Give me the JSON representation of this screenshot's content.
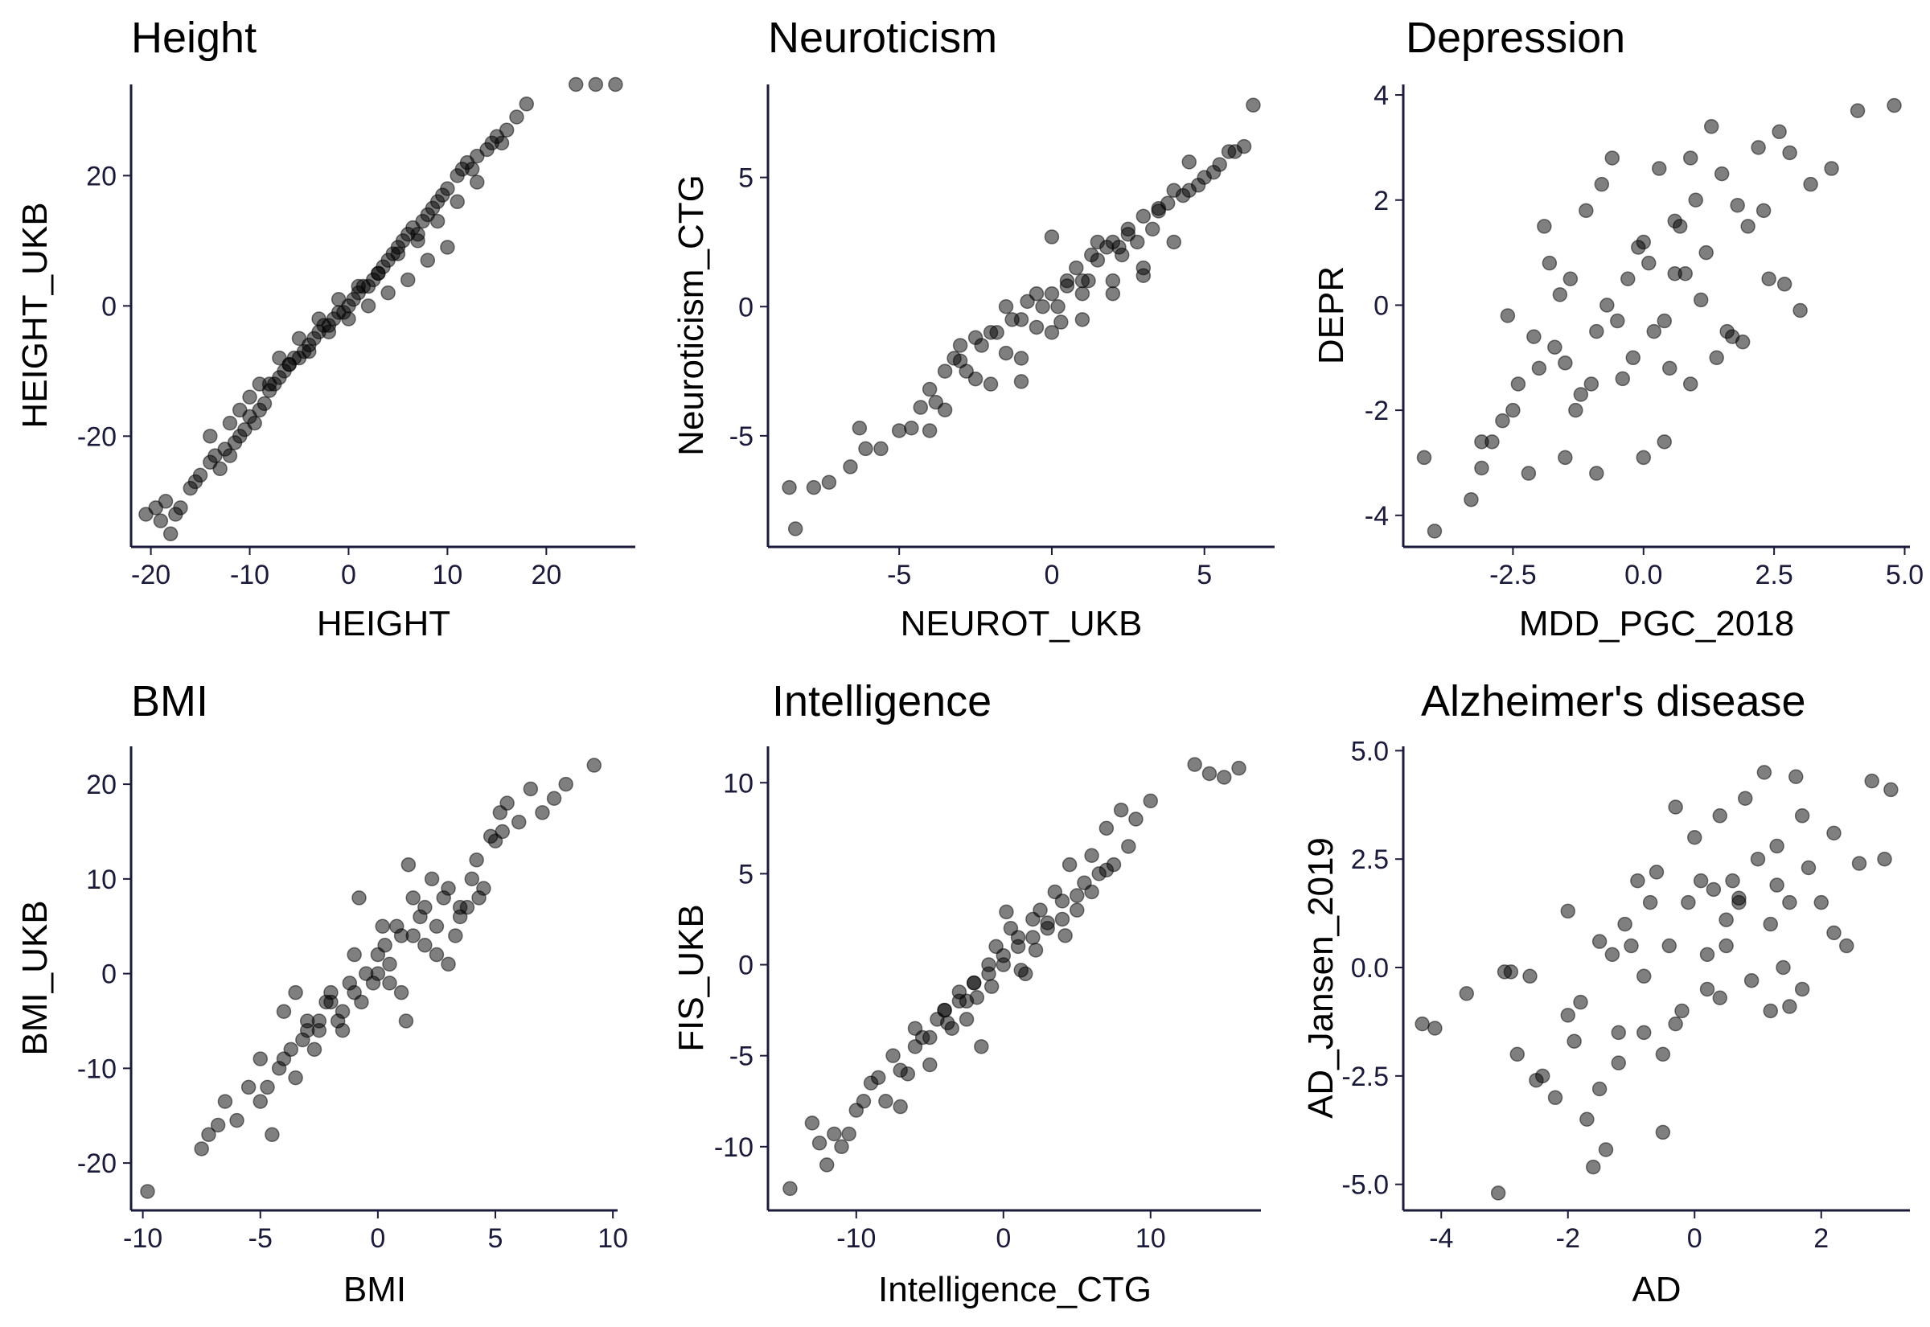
{
  "chart_data": [
    {
      "type": "scatter",
      "title": "Height",
      "xlabel": "HEIGHT",
      "ylabel": "HEIGHT_UKB",
      "xlim": [
        -22,
        29
      ],
      "ylim": [
        -37,
        34
      ],
      "xticks": [
        -20,
        -10,
        0,
        10,
        20
      ],
      "xtick_labels": [
        "-20",
        "-10",
        "0",
        "10",
        "20"
      ],
      "yticks": [
        -20,
        0,
        20
      ],
      "ytick_labels": [
        "-20",
        "0",
        "20"
      ],
      "points": {
        "x": [
          -20.5,
          -19.5,
          -19,
          -18.5,
          -18,
          -17.5,
          -17,
          -16,
          -15.5,
          -15,
          -14,
          -13.5,
          -13,
          -12.5,
          -12,
          -11.5,
          -11,
          -10.5,
          -10,
          -9.5,
          -9,
          -8.5,
          -8,
          -7.5,
          -7,
          -6.5,
          -6,
          -5.5,
          -5,
          -4.5,
          -4,
          -3.5,
          -3,
          -2.5,
          -2,
          -1.5,
          -1,
          -0.5,
          0,
          0.5,
          1,
          1.5,
          2,
          2.5,
          3,
          3.5,
          4,
          4.5,
          5,
          5.5,
          6,
          6.5,
          7,
          7.5,
          8,
          8.5,
          9,
          9.5,
          10,
          11,
          11.5,
          12,
          12.5,
          13,
          14,
          14.5,
          15,
          15.5,
          16,
          17,
          18,
          23,
          25,
          27,
          -14,
          -12,
          -10,
          -8,
          -6,
          -4,
          -2,
          0,
          2,
          4,
          6,
          8,
          10,
          3,
          5,
          1,
          -1,
          -3,
          -5,
          -7,
          -9,
          -11,
          7,
          9,
          11,
          13
        ],
        "y": [
          -32,
          -31,
          -33,
          -30,
          -35,
          -32,
          -31,
          -28,
          -27,
          -26,
          -24,
          -23,
          -25,
          -22,
          -23,
          -21,
          -20,
          -19,
          -17,
          -18,
          -16,
          -15,
          -13,
          -12,
          -11,
          -10,
          -9,
          -8,
          -8,
          -7,
          -6,
          -5,
          -4,
          -3,
          -3,
          -2,
          -1,
          -1,
          0,
          1,
          2,
          3,
          3,
          4,
          5,
          6,
          7,
          8,
          9,
          10,
          11,
          12,
          11,
          13,
          14,
          15,
          16,
          17,
          18,
          20,
          21,
          22,
          21,
          23,
          24,
          25,
          26,
          25,
          27,
          29,
          31,
          34,
          34,
          34,
          -20,
          -18,
          -14,
          -12,
          -9,
          -7,
          -4,
          -2,
          0,
          2,
          4,
          7,
          9,
          5,
          8,
          3,
          1,
          -2,
          -5,
          -8,
          -12,
          -16,
          10,
          13,
          16,
          19
        ]
      }
    },
    {
      "type": "scatter",
      "title": "Neuroticism",
      "xlabel": "NEUROT_UKB",
      "ylabel": "Neuroticism_CTG",
      "xlim": [
        -9.3,
        7.3
      ],
      "ylim": [
        -9.3,
        8.6
      ],
      "xticks": [
        -5,
        0,
        5
      ],
      "xtick_labels": [
        "-5",
        "0",
        "5"
      ],
      "yticks": [
        -5,
        0,
        5
      ],
      "ytick_labels": [
        "-5",
        "0",
        "5"
      ],
      "points": {
        "x": [
          -8.6,
          -8.4,
          -7.8,
          -7.3,
          -6.6,
          -6.3,
          -6.1,
          -5.6,
          -5,
          -4.6,
          -4.3,
          -4,
          -3.8,
          -3.5,
          -3.2,
          -3,
          -2.8,
          -2.5,
          -2.3,
          -2,
          -1.8,
          -1.5,
          -1.3,
          -1,
          -0.8,
          -0.5,
          -0.3,
          0,
          0.2,
          0.5,
          0.8,
          1,
          1.3,
          1.5,
          1.8,
          2,
          2.3,
          2.5,
          2.8,
          3,
          3.3,
          3.5,
          3.8,
          4,
          4.3,
          4.5,
          4.8,
          5,
          5.3,
          5.5,
          5.8,
          6,
          6.3,
          6.6,
          -2,
          -1,
          0,
          1,
          2,
          3,
          -3,
          -2.5,
          -1.5,
          -0.5,
          0.5,
          1.5,
          2.5,
          3.5,
          4.5,
          -4,
          -3.5,
          1,
          2,
          3,
          4,
          0,
          -1,
          0.3,
          1.2,
          2.2
        ],
        "y": [
          -7,
          -8.6,
          -7,
          -6.8,
          -6.2,
          -4.7,
          -5.5,
          -5.5,
          -4.8,
          -4.7,
          -3.9,
          -3.2,
          -3.7,
          -2.5,
          -2,
          -2.1,
          -2.5,
          -1.2,
          -1.5,
          -1,
          -1,
          0,
          -0.5,
          -0.5,
          0.2,
          0.5,
          0,
          0.5,
          0,
          1,
          1.5,
          1,
          2,
          2.5,
          2.3,
          2.5,
          2,
          3,
          2.5,
          3.5,
          3,
          3.7,
          4,
          4.5,
          4.3,
          4.5,
          4.7,
          5,
          5.2,
          5.5,
          6,
          6,
          6.2,
          7.8,
          -3,
          -2,
          -1,
          0.5,
          1,
          1.5,
          -1.5,
          -2.8,
          -1.8,
          -0.8,
          0.8,
          1.8,
          2.8,
          3.8,
          5.6,
          -4.8,
          -4,
          -0.5,
          0.5,
          1.2,
          2.5,
          2.7,
          -2.9,
          -0.6,
          1,
          2.3
        ]
      }
    },
    {
      "type": "scatter",
      "title": "Depression",
      "xlabel": "MDD_PGC_2018",
      "ylabel": "DEPR",
      "xlim": [
        -4.6,
        5.1
      ],
      "ylim": [
        -4.6,
        4.2
      ],
      "xticks": [
        -2.5,
        0,
        2.5,
        5
      ],
      "xtick_labels": [
        "-2.5",
        "0.0",
        "2.5",
        "5.0"
      ],
      "yticks": [
        -4,
        -2,
        0,
        2,
        4
      ],
      "ytick_labels": [
        "-4",
        "-2",
        "0",
        "2",
        "4"
      ],
      "points": {
        "x": [
          -4.2,
          -4,
          -3.3,
          -3.1,
          -2.9,
          -2.7,
          -2.5,
          -2.4,
          -2.2,
          -2,
          -1.9,
          -1.7,
          -1.5,
          -1.4,
          -1.2,
          -1.1,
          -0.9,
          -0.8,
          -0.6,
          -0.5,
          -0.3,
          -0.2,
          0,
          0.1,
          0.3,
          0.4,
          0.6,
          0.7,
          0.9,
          1,
          1.2,
          1.3,
          1.5,
          1.6,
          1.8,
          2,
          2.2,
          2.4,
          2.6,
          2.8,
          3,
          3.2,
          3.6,
          4.1,
          4.8,
          -1.3,
          -1,
          -0.4,
          0.2,
          0.8,
          1.4,
          -2.6,
          -1.8,
          -0.7,
          0.5,
          1.1,
          1.9,
          -1.6,
          0,
          0.6,
          -0.1,
          0.4,
          1.7,
          2.3,
          -0.9,
          -2.1,
          -3.1,
          -1.5,
          0.9,
          2.7
        ],
        "y": [
          -2.9,
          -4.3,
          -3.7,
          -3.1,
          -2.6,
          -2.2,
          -2,
          -1.5,
          -3.2,
          -1.2,
          1.5,
          -0.8,
          -2.9,
          0.5,
          -1.7,
          1.8,
          -0.5,
          2.3,
          2.8,
          -0.3,
          0.5,
          -1,
          1.2,
          0.8,
          2.6,
          -2.6,
          0.6,
          1.5,
          2.8,
          2,
          1,
          3.4,
          2.5,
          -0.5,
          1.9,
          1.5,
          3,
          0.5,
          3.3,
          2.9,
          -0.1,
          2.3,
          2.6,
          3.7,
          3.8,
          -2,
          -1.5,
          -1.4,
          -0.5,
          0.6,
          -1,
          -0.2,
          0.8,
          0,
          -1.2,
          0.1,
          -0.7,
          0.2,
          -2.9,
          1.6,
          1.1,
          -0.3,
          -0.6,
          1.8,
          -3.2,
          -0.6,
          -2.6,
          -1.1,
          -1.5,
          0.4
        ]
      }
    },
    {
      "type": "scatter",
      "title": "BMI",
      "xlabel": "BMI",
      "ylabel": "BMI_UKB",
      "xlim": [
        -10.5,
        10.2
      ],
      "ylim": [
        -25,
        24
      ],
      "xticks": [
        -10,
        -5,
        0,
        5,
        10
      ],
      "xtick_labels": [
        "-10",
        "-5",
        "0",
        "5",
        "10"
      ],
      "yticks": [
        -20,
        -10,
        0,
        10,
        20
      ],
      "ytick_labels": [
        "-20",
        "-10",
        "0",
        "10",
        "20"
      ],
      "points": {
        "x": [
          -9.8,
          -7.5,
          -7.2,
          -6.8,
          -6.5,
          -6,
          -5.5,
          -5,
          -4.7,
          -4.5,
          -4.2,
          -4,
          -3.7,
          -3.5,
          -3.2,
          -3,
          -2.7,
          -2.5,
          -2.2,
          -2,
          -1.7,
          -1.5,
          -1.2,
          -1,
          -0.7,
          -0.5,
          -0.2,
          0,
          0.3,
          0.5,
          0.8,
          1,
          1.3,
          1.5,
          1.8,
          2,
          2.3,
          2.5,
          2.8,
          3,
          3.3,
          3.5,
          3.8,
          4,
          4.3,
          4.5,
          4.8,
          5,
          5.3,
          5.5,
          6,
          6.5,
          7,
          7.5,
          8,
          9.2,
          -4,
          -3,
          -2,
          -1,
          0,
          1,
          2,
          3,
          -5,
          -2.5,
          0.5,
          1.5,
          2.5,
          3.5,
          -3.5,
          -1.5,
          0.2,
          -0.8,
          1.2,
          4.2,
          5.2
        ],
        "y": [
          -23,
          -18.5,
          -17,
          -16,
          -13.5,
          -15.5,
          -12,
          -13.5,
          -12,
          -17,
          -10,
          -9,
          -8,
          -11,
          -7,
          -5,
          -8,
          -6,
          -3,
          -2,
          -5,
          -4,
          -1,
          -2,
          -3,
          0,
          -1,
          2,
          3,
          1,
          5,
          4,
          11.5,
          8,
          6,
          7,
          10,
          5,
          8,
          9,
          4,
          6,
          7,
          10,
          8,
          9,
          14.5,
          14,
          15,
          18,
          16,
          19.5,
          17,
          18.5,
          20,
          22,
          -4,
          -6,
          -3,
          2,
          0,
          -2,
          3,
          1,
          -9,
          -5,
          -1,
          4,
          2,
          7,
          -2,
          -6,
          5,
          8,
          -5,
          12,
          17
        ]
      }
    },
    {
      "type": "scatter",
      "title": "Intelligence",
      "xlabel": "Intelligence_CTG",
      "ylabel": "FIS_UKB",
      "xlim": [
        -16,
        17.5
      ],
      "ylim": [
        -13.5,
        12
      ],
      "xticks": [
        -10,
        0,
        10
      ],
      "xtick_labels": [
        "-10",
        "0",
        "10"
      ],
      "yticks": [
        -10,
        -5,
        0,
        5,
        10
      ],
      "ytick_labels": [
        "-10",
        "-5",
        "0",
        "5",
        "10"
      ],
      "points": {
        "x": [
          -14.5,
          -13,
          -12.5,
          -12,
          -11.5,
          -11,
          -10.5,
          -10,
          -9.5,
          -9,
          -8.5,
          -8,
          -7.5,
          -7,
          -6.5,
          -6,
          -5.5,
          -5,
          -4.5,
          -4,
          -3.5,
          -3,
          -2.5,
          -2,
          -1.5,
          -1,
          -0.5,
          0,
          0.5,
          1,
          1.5,
          2,
          2.5,
          3,
          3.5,
          4,
          4.5,
          5,
          5.5,
          6,
          6.5,
          7,
          7.5,
          8,
          8.5,
          9,
          10,
          13,
          14,
          15,
          16,
          -6,
          -4,
          -2,
          0,
          2,
          4,
          6,
          -5,
          -3,
          -1,
          1,
          3,
          5,
          7,
          0.2,
          -0.8,
          1.2,
          -1.8,
          2.2,
          -3.8,
          4.2,
          -7,
          -2.5
        ],
        "y": [
          -12.3,
          -8.7,
          -9.8,
          -11,
          -9.3,
          -10,
          -9.3,
          -8,
          -7.5,
          -6.5,
          -6.2,
          -7.5,
          -5,
          -5.8,
          -6,
          -4.5,
          -4,
          -5.5,
          -3,
          -2.5,
          -3.5,
          -1.5,
          -2,
          -1,
          -4.5,
          0,
          1,
          0.5,
          2,
          1.5,
          -0.5,
          2.5,
          3,
          2,
          4,
          3.5,
          5.5,
          3,
          4.5,
          6,
          5,
          7.5,
          5.5,
          8.5,
          6.5,
          8,
          9,
          11,
          10.5,
          10.3,
          10.8,
          -3.5,
          -2.5,
          -1,
          0,
          1.5,
          2.5,
          4,
          -4,
          -2,
          -0.5,
          1,
          2.3,
          3.8,
          5.2,
          2.9,
          -1.2,
          -0.3,
          -1.8,
          0.8,
          -3.2,
          1.6,
          -7.8,
          -3
        ]
      }
    },
    {
      "type": "scatter",
      "title": "Alzheimer's disease",
      "xlabel": "AD",
      "ylabel": "AD_Jansen_2019",
      "xlim": [
        -4.6,
        3.4
      ],
      "ylim": [
        -5.6,
        5.1
      ],
      "xticks": [
        -4,
        -2,
        0,
        2
      ],
      "xtick_labels": [
        "-4",
        "-2",
        "0",
        "2"
      ],
      "yticks": [
        -5,
        -2.5,
        0,
        2.5,
        5
      ],
      "ytick_labels": [
        "-5.0",
        "-2.5",
        "0.0",
        "2.5",
        "5.0"
      ],
      "points": {
        "x": [
          -4.3,
          -4.1,
          -3.6,
          -3.1,
          -2.9,
          -2.6,
          -2.4,
          -2.2,
          -2,
          -1.9,
          -1.7,
          -1.6,
          -1.5,
          -1.4,
          -1.3,
          -1.2,
          -1.1,
          -1,
          -0.9,
          -0.8,
          -0.7,
          -0.6,
          -0.5,
          -0.4,
          -0.3,
          -0.2,
          -0.1,
          0,
          0.1,
          0.2,
          0.3,
          0.4,
          0.5,
          0.6,
          0.7,
          0.8,
          0.9,
          1,
          1.1,
          1.2,
          1.3,
          1.4,
          1.5,
          1.6,
          1.7,
          1.8,
          2,
          2.2,
          2.4,
          2.6,
          2.8,
          3,
          3.1,
          -2.8,
          -1.8,
          -0.8,
          0.2,
          1.2,
          2.2,
          -1.5,
          -0.5,
          0.5,
          1.5,
          -2.5,
          -0.3,
          0.7,
          1.7,
          -1.2,
          0.4,
          1.3,
          -3,
          -2
        ],
        "y": [
          -1.3,
          -1.4,
          -0.6,
          -5.2,
          -0.1,
          -0.2,
          -2.5,
          -3,
          1.3,
          -1.7,
          -3.5,
          -4.6,
          -2.8,
          -4.2,
          0.3,
          -1.5,
          1,
          0.5,
          2,
          -0.2,
          1.5,
          2.2,
          -3.8,
          0.5,
          3.7,
          -1,
          1.5,
          3,
          2,
          -0.5,
          1.8,
          3.5,
          0.5,
          2,
          1.5,
          3.9,
          -0.3,
          2.5,
          4.5,
          1,
          2.8,
          0,
          1.5,
          4.4,
          3.5,
          2.3,
          1.5,
          3.1,
          0.5,
          2.4,
          4.3,
          2.5,
          4.1,
          -2,
          -0.8,
          -1.5,
          0.3,
          -1,
          0.8,
          0.6,
          -2,
          1.1,
          -0.9,
          -2.6,
          -1.3,
          1.6,
          -0.5,
          -2.2,
          -0.7,
          1.9,
          -0.1,
          -1.1
        ]
      }
    }
  ]
}
